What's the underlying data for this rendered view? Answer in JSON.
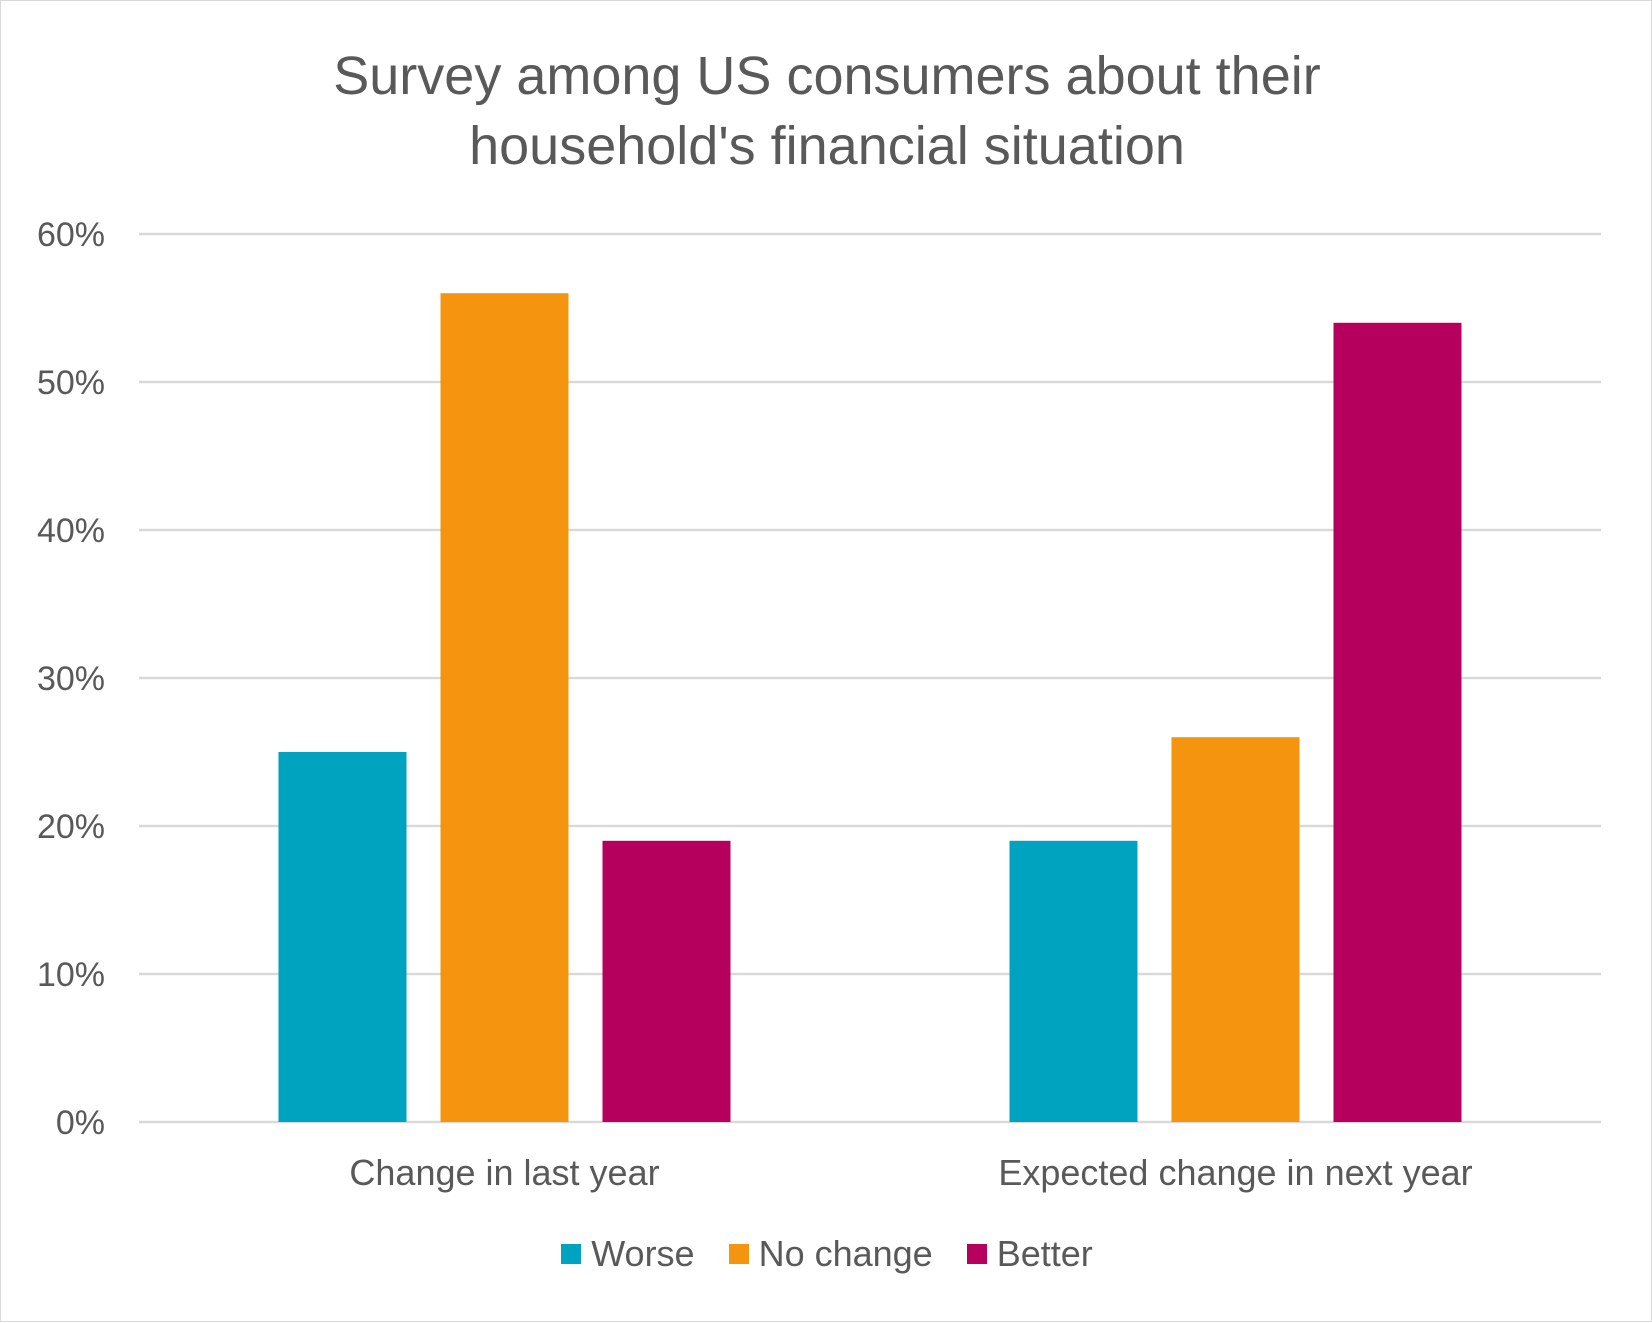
{
  "chart_data": {
    "type": "bar",
    "title": "Survey among US consumers about their\nhousehold's financial situation",
    "categories": [
      "Change in last year",
      "Expected change in next year"
    ],
    "series": [
      {
        "name": "Worse",
        "color": "#00A3BF",
        "values": [
          0.25,
          0.19
        ]
      },
      {
        "name": "No change",
        "color": "#F5950F",
        "values": [
          0.56,
          0.26
        ]
      },
      {
        "name": "Better",
        "color": "#B5005E",
        "values": [
          0.19,
          0.54
        ]
      }
    ],
    "ylim": [
      0,
      0.6
    ],
    "yticks": [
      0,
      0.1,
      0.2,
      0.3,
      0.4,
      0.5,
      0.6
    ],
    "ytick_labels": [
      "0%",
      "10%",
      "20%",
      "30%",
      "40%",
      "50%",
      "60%"
    ],
    "grid": true,
    "legend_position": "bottom",
    "gridline_color": "#d9d9d9",
    "text_color": "#595959"
  }
}
